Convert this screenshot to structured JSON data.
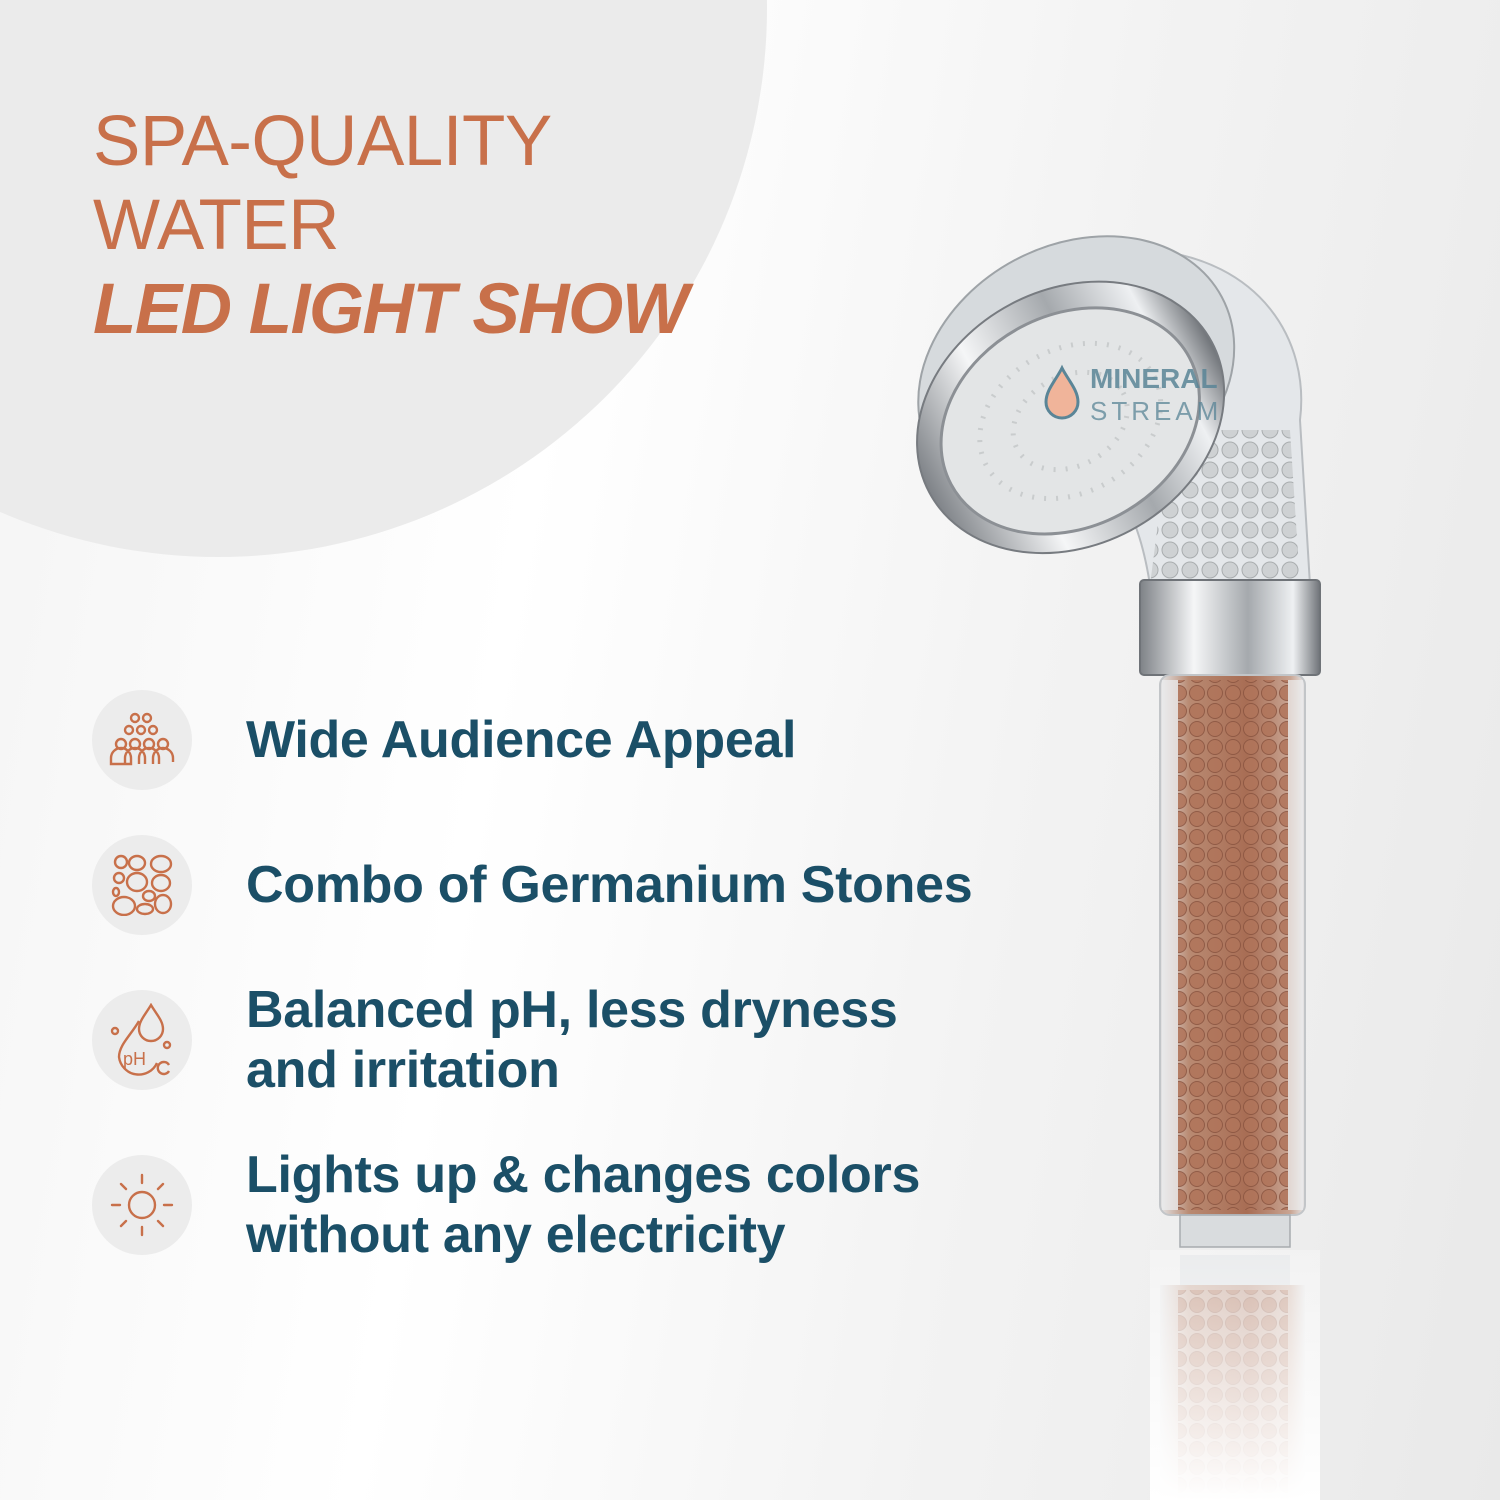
{
  "headline": {
    "line1": "SPA-QUALITY",
    "line2": "WATER",
    "line3": "LED LIGHT SHOW"
  },
  "features": [
    {
      "icon": "people-group-icon",
      "text": "Wide Audience Appeal"
    },
    {
      "icon": "stones-icon",
      "text": "Combo of Germanium Stones"
    },
    {
      "icon": "ph-drop-icon",
      "line1": "Balanced pH, less dryness",
      "line2": "and irritation"
    },
    {
      "icon": "sun-icon",
      "line1": "Lights up & changes colors",
      "line2": "without any electricity"
    }
  ],
  "logo": {
    "line1": "MINERAL",
    "line2": "STREAM"
  },
  "colors": {
    "accent": "#c8704a",
    "text": "#1b4f67",
    "icon_bg": "#ececec"
  }
}
